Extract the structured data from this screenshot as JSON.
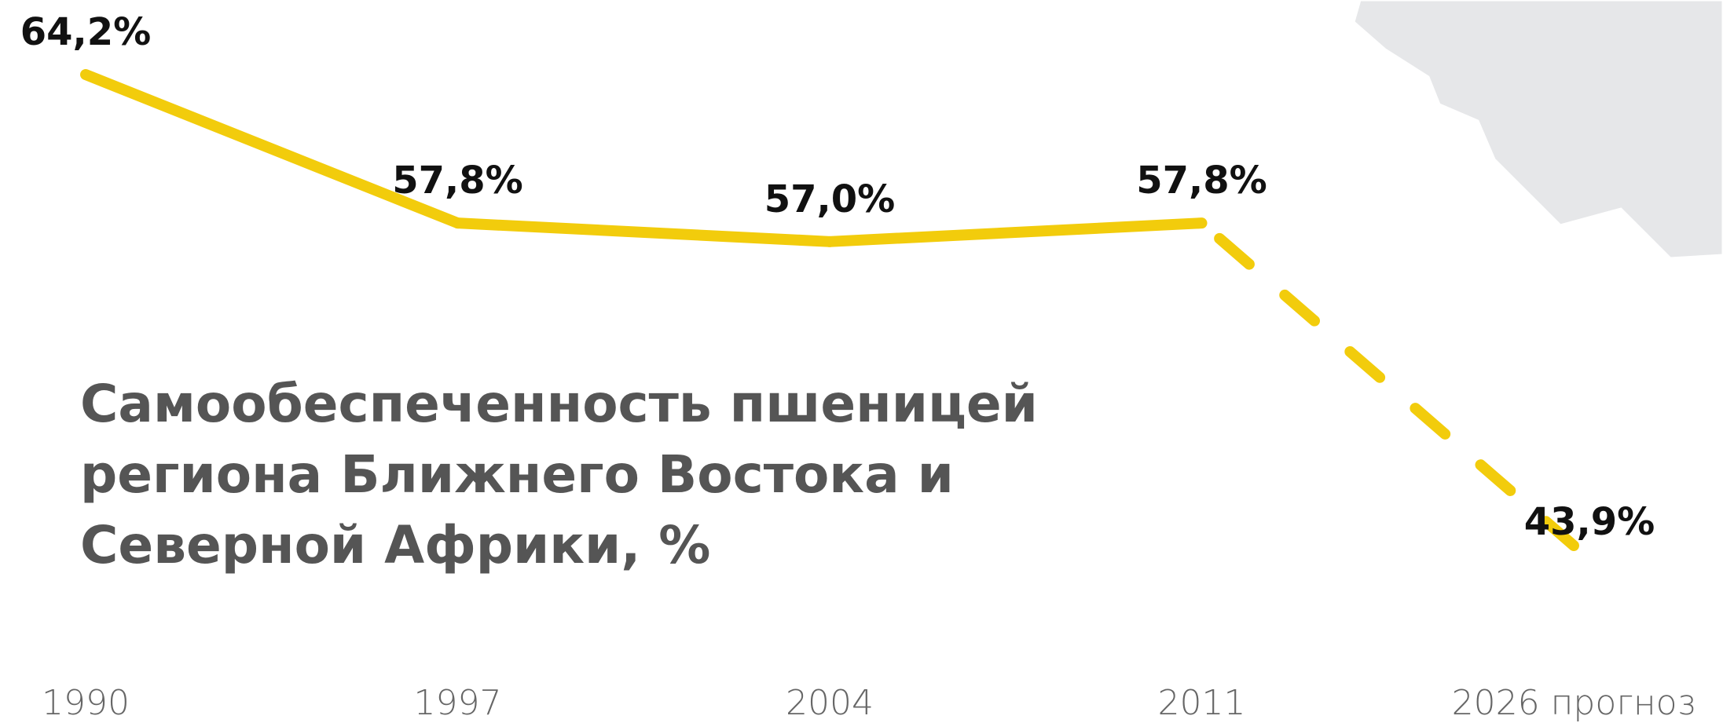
{
  "chart_data": {
    "type": "line",
    "title": "Самообеспеченность пшеницей\nрегиона Ближнего Востока и\nСеверной Африки, %",
    "categories": [
      "1990",
      "1997",
      "2004",
      "2011",
      "2026 прогноз"
    ],
    "values": [
      64.2,
      57.8,
      57.0,
      57.8,
      43.9
    ],
    "value_labels": [
      "64,2%",
      "57,8%",
      "57,0%",
      "57,8%",
      "43,9%"
    ],
    "color": "#f2cc0c",
    "segment_styles": [
      "solid",
      "solid",
      "solid",
      "dashed"
    ]
  }
}
